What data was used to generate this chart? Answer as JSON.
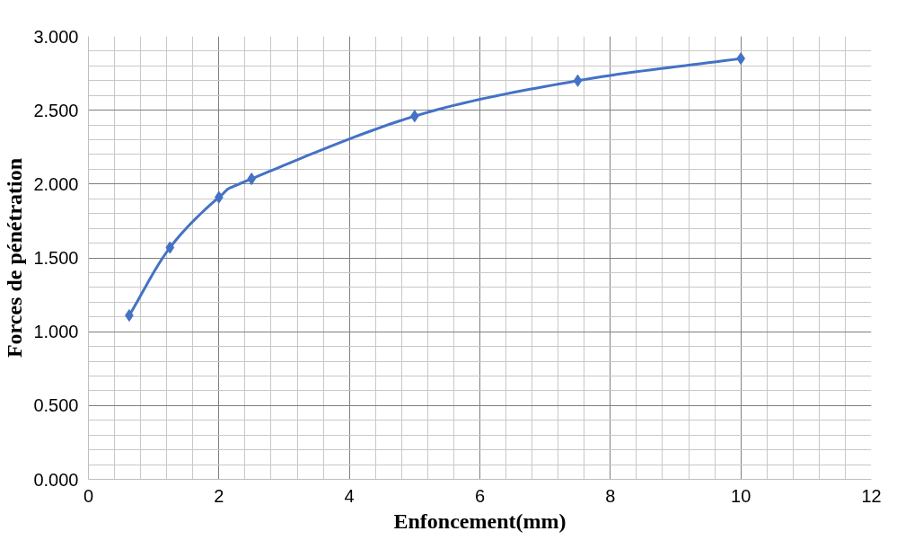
{
  "chart_data": {
    "type": "line",
    "xlabel": "Enfoncement(mm)",
    "ylabel": "Forces de pénétration",
    "x": [
      0.625,
      1.25,
      2,
      2.5,
      5,
      7.5,
      10
    ],
    "series": [
      {
        "color": "#4472c4",
        "values": [
          1.11,
          1.57,
          1.91,
          2.035,
          2.46,
          2.7,
          2.85
        ]
      }
    ],
    "xlim": [
      0,
      12
    ],
    "xticks": [
      0,
      2,
      4,
      6,
      8,
      10,
      12
    ],
    "ylim": [
      0,
      3
    ],
    "yticks": [
      {
        "value": 0,
        "label": "0.000"
      },
      {
        "value": 0.5,
        "label": "0.500"
      },
      {
        "value": 1,
        "label": "1.000"
      },
      {
        "value": 1.5,
        "label": "1.500"
      },
      {
        "value": 2,
        "label": "2.000"
      },
      {
        "value": 2.5,
        "label": "2.500"
      },
      {
        "value": 3,
        "label": "3.000"
      }
    ],
    "grid": true,
    "marker": "diamond",
    "line_style": "solid"
  }
}
